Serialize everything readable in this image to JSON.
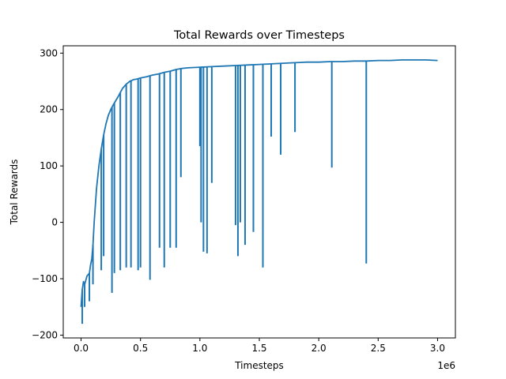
{
  "chart_data": {
    "type": "line",
    "title": "Total Rewards over Timesteps",
    "xlabel": "Timesteps",
    "ylabel": "Total Rewards",
    "x_offset_text": "1e6",
    "xlim": [
      -0.15,
      3.15
    ],
    "ylim": [
      -205,
      313
    ],
    "x_ticks": [
      0.0,
      0.5,
      1.0,
      1.5,
      2.0,
      2.5,
      3.0
    ],
    "x_tick_labels": [
      "0.0",
      "0.5",
      "1.0",
      "1.5",
      "2.0",
      "2.5",
      "3.0"
    ],
    "y_ticks": [
      -200,
      -100,
      0,
      100,
      200,
      300
    ],
    "y_tick_labels": [
      "−200",
      "−100",
      "0",
      "100",
      "200",
      "300"
    ],
    "grid": false,
    "legend": "none",
    "series": [
      {
        "color": "#1f77b4",
        "x_units": "1e6 timesteps",
        "x": [
          0.0,
          0.01,
          0.02,
          0.03,
          0.05,
          0.07,
          0.08,
          0.09,
          0.1,
          0.11,
          0.12,
          0.13,
          0.15,
          0.17,
          0.19,
          0.21,
          0.23,
          0.25,
          0.27,
          0.29,
          0.31,
          0.33,
          0.35,
          0.38,
          0.41,
          0.44,
          0.47,
          0.5,
          0.55,
          0.6,
          0.65,
          0.7,
          0.75,
          0.8,
          0.85,
          0.9,
          1.0,
          1.1,
          1.2,
          1.3,
          1.4,
          1.5,
          1.6,
          1.7,
          1.8,
          1.9,
          2.0,
          2.1,
          2.2,
          2.3,
          2.4,
          2.5,
          2.6,
          2.7,
          2.8,
          2.9,
          3.0
        ],
        "y": [
          -150,
          -120,
          -105,
          -110,
          -95,
          -90,
          -75,
          -65,
          -40,
          0,
          30,
          60,
          100,
          130,
          155,
          175,
          190,
          200,
          208,
          215,
          222,
          230,
          238,
          245,
          250,
          253,
          254,
          256,
          258,
          261,
          263,
          266,
          268,
          271,
          273,
          274,
          275,
          276,
          277,
          278,
          279,
          280,
          281,
          282,
          283,
          284,
          284,
          285,
          285,
          286,
          286,
          287,
          287,
          288,
          288,
          288,
          287
        ]
      }
    ],
    "dips": {
      "x": [
        0.01,
        0.03,
        0.07,
        0.1,
        0.17,
        0.19,
        0.26,
        0.28,
        0.33,
        0.38,
        0.42,
        0.48,
        0.5,
        0.58,
        0.66,
        0.7,
        0.75,
        0.8,
        0.84,
        1.0,
        1.01,
        1.03,
        1.06,
        1.1,
        1.3,
        1.32,
        1.34,
        1.38,
        1.45,
        1.53,
        1.6,
        1.68,
        1.8,
        2.11,
        2.4
      ],
      "y": [
        -180,
        -150,
        -140,
        -110,
        -85,
        -60,
        -125,
        -90,
        -85,
        -80,
        -80,
        -85,
        -80,
        -102,
        -45,
        -80,
        -45,
        -45,
        80,
        135,
        0,
        -52,
        -55,
        70,
        -5,
        -60,
        0,
        -40,
        -17,
        -80,
        152,
        120,
        160,
        97,
        -73
      ]
    }
  }
}
